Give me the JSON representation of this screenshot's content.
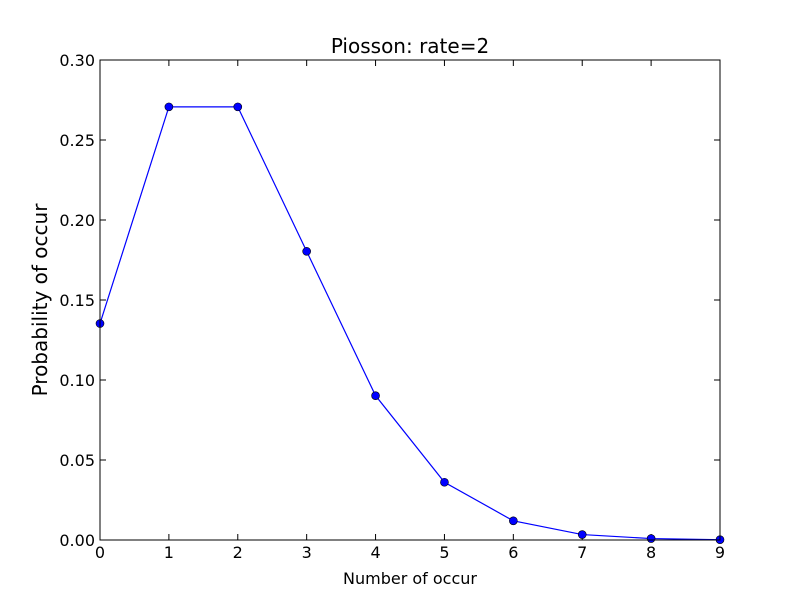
{
  "chart_data": {
    "type": "line",
    "title": "Piosson: rate=2",
    "xlabel": "Number of occur",
    "ylabel": "Probability of occur",
    "xlim": [
      0,
      9
    ],
    "ylim": [
      0,
      0.3
    ],
    "grid": false,
    "x_ticks": [
      0,
      1,
      2,
      3,
      4,
      5,
      6,
      7,
      8,
      9
    ],
    "x_tick_labels": [
      "0",
      "1",
      "2",
      "3",
      "4",
      "5",
      "6",
      "7",
      "8",
      "9"
    ],
    "y_ticks": [
      0,
      0.05,
      0.1,
      0.15,
      0.2,
      0.25,
      0.3
    ],
    "y_tick_labels": [
      "0.00",
      "0.05",
      "0.10",
      "0.15",
      "0.20",
      "0.25",
      "0.30"
    ],
    "series": [
      {
        "color": "#0000ff",
        "marker": "circle",
        "x": [
          0,
          1,
          2,
          3,
          4,
          5,
          6,
          7,
          8,
          9
        ],
        "values": [
          0.1353,
          0.2707,
          0.2707,
          0.1804,
          0.0902,
          0.0361,
          0.012,
          0.0034,
          0.0009,
          0.0002
        ]
      }
    ]
  }
}
